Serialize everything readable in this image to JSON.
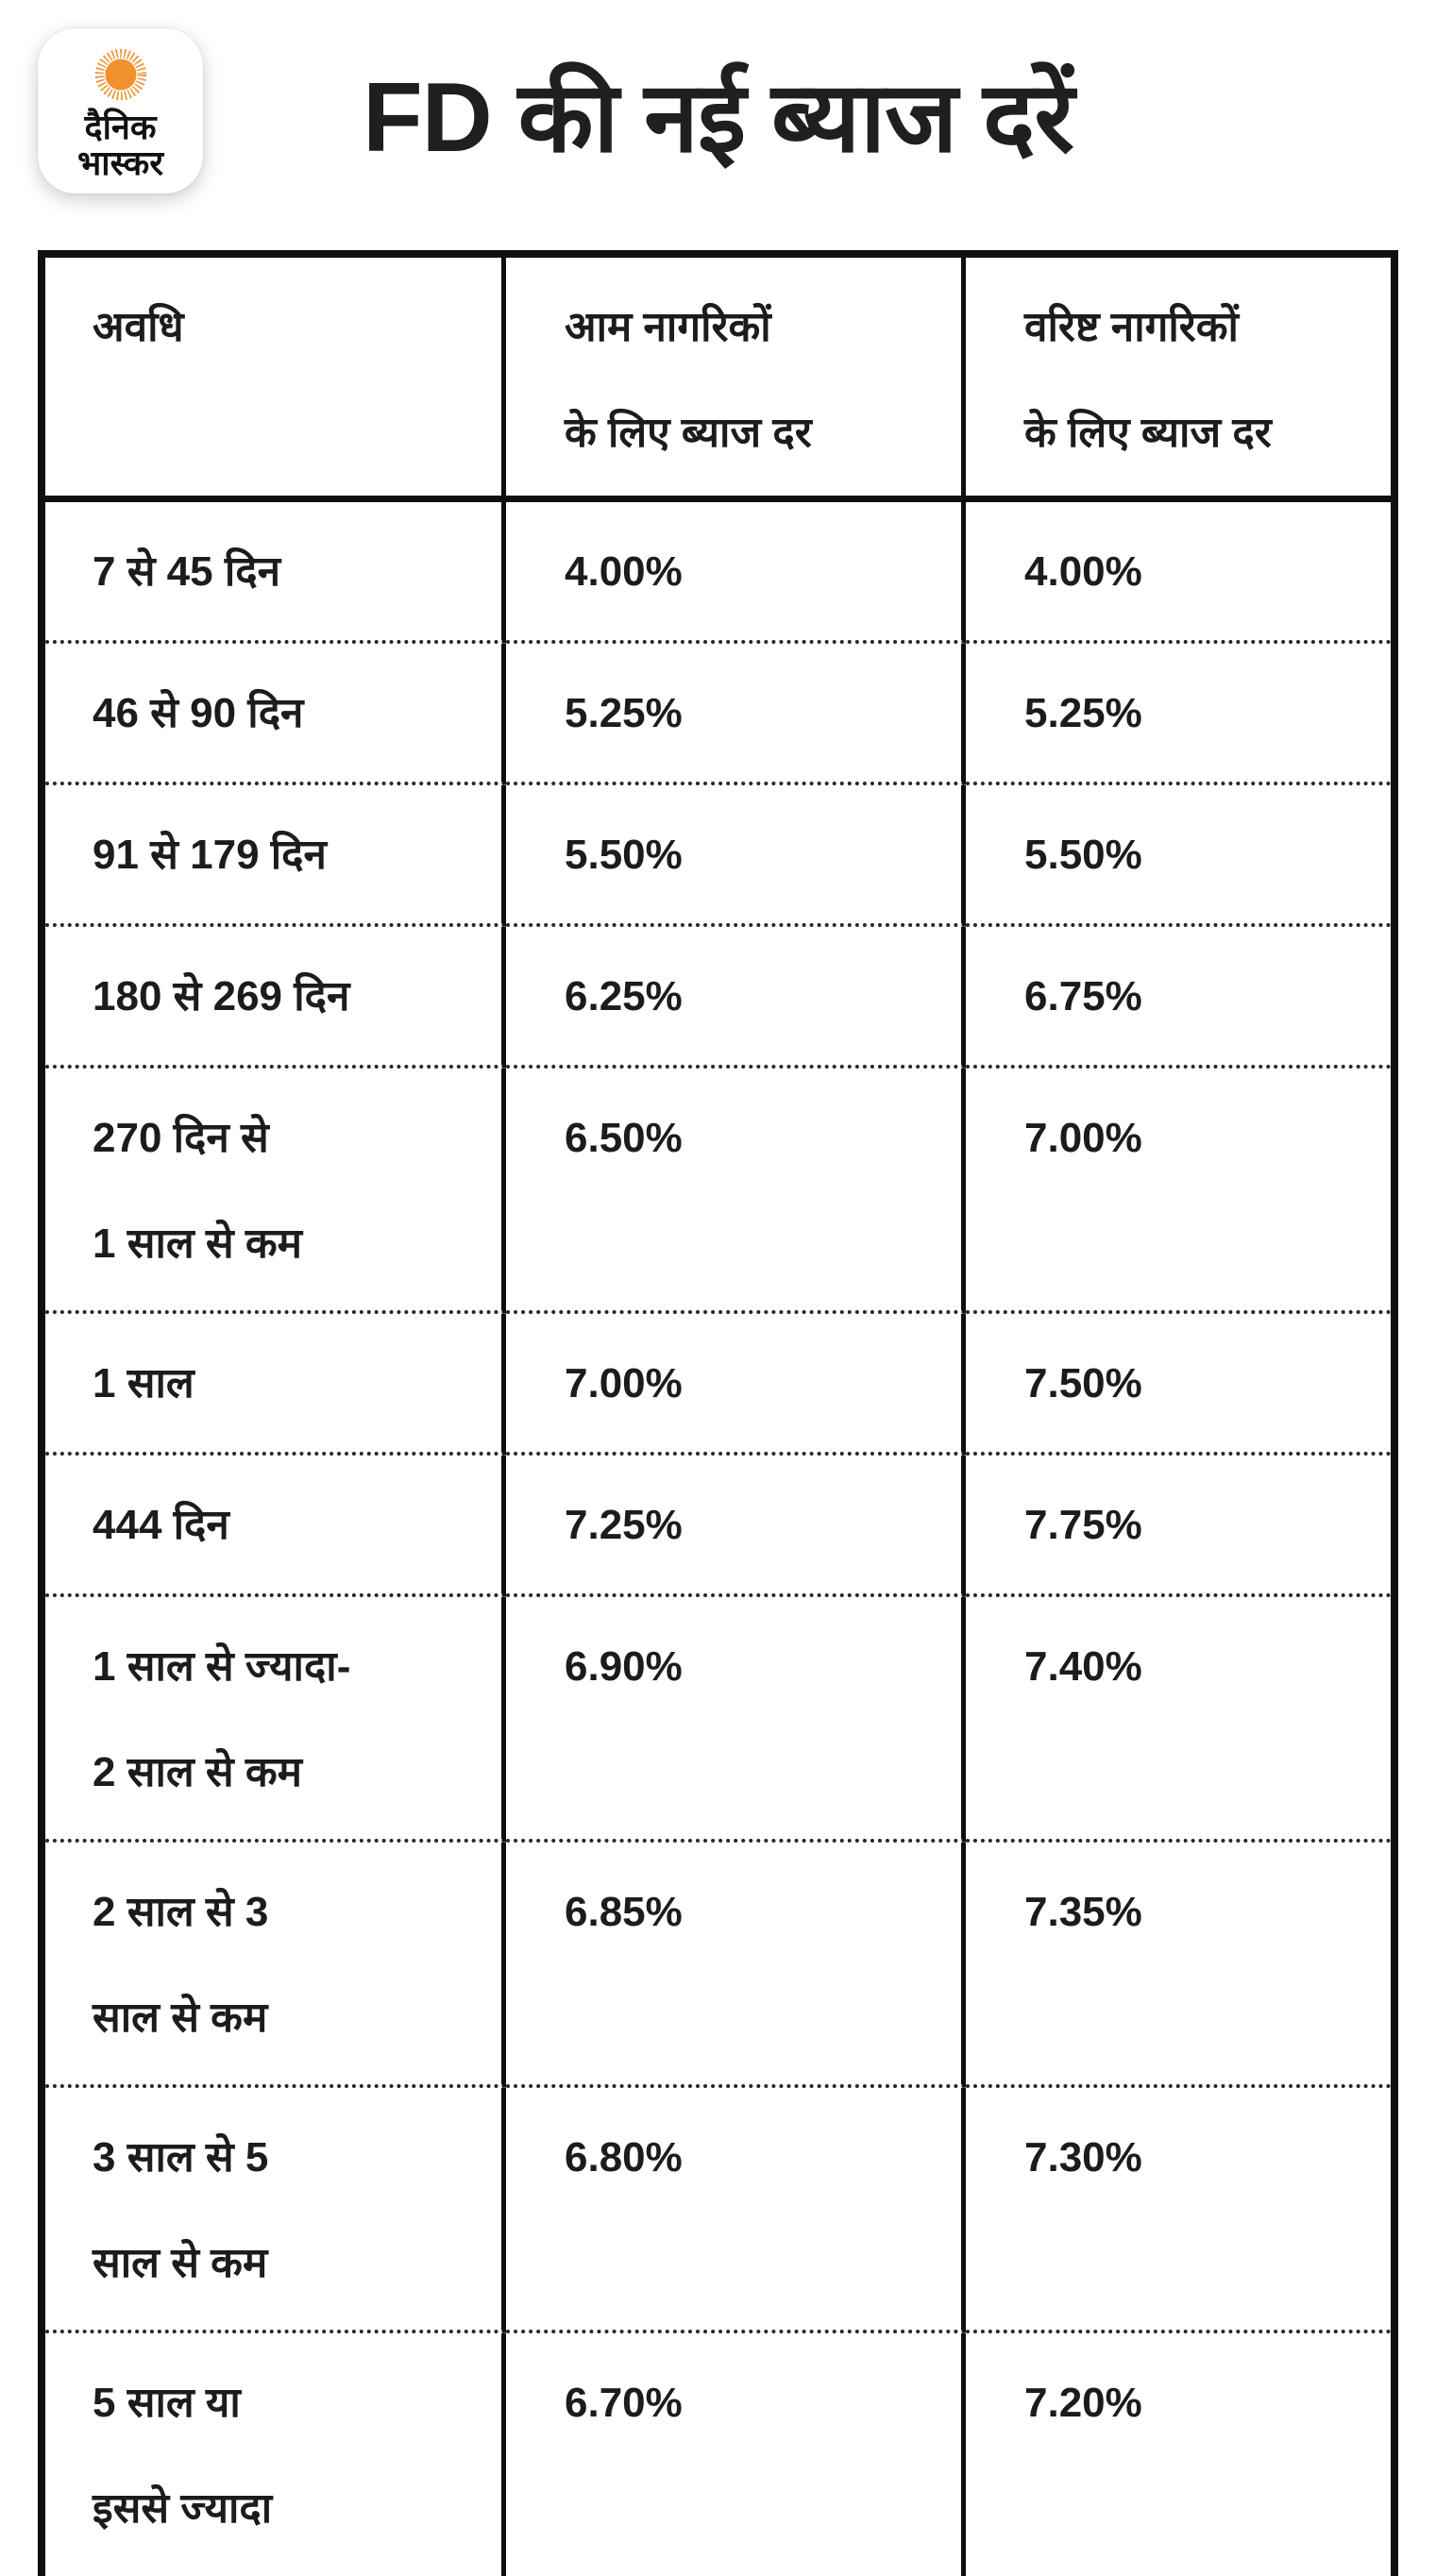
{
  "logo": {
    "name": "Dainik Bhaskar",
    "line1": "दैनिक",
    "line2": "भास्कर"
  },
  "title": "FD की नई ब्याज दरें",
  "colors": {
    "logo_orange": "#F0912D",
    "text": "#1c1c1c",
    "border": "#0f0f0f",
    "background": "#ffffff"
  },
  "chart_data": {
    "type": "table",
    "title": "FD की नई ब्याज दरें",
    "columns": [
      "अवधि",
      "आम नागरिकों\nके लिए ब्याज दर",
      "वरिष्ट नागरिकों\nके लिए ब्याज दर"
    ],
    "rows": [
      [
        "7 से 45 दिन",
        "4.00%",
        "4.00%"
      ],
      [
        "46 से 90 दिन",
        "5.25%",
        "5.25%"
      ],
      [
        "91 से 179 दिन",
        "5.50%",
        "5.50%"
      ],
      [
        "180 से 269 दिन",
        "6.25%",
        "6.75%"
      ],
      [
        "270 दिन से\n1 साल से कम",
        "6.50%",
        "7.00%"
      ],
      [
        "1 साल",
        "7.00%",
        "7.50%"
      ],
      [
        "444 दिन",
        "7.25%",
        "7.75%"
      ],
      [
        "1 साल से ज्यादा-\n2 साल से कम",
        "6.90%",
        "7.40%"
      ],
      [
        "2 साल से 3\nसाल से कम",
        "6.85%",
        "7.35%"
      ],
      [
        "3 साल से 5\nसाल से कम",
        "6.80%",
        "7.30%"
      ],
      [
        "5 साल या\nइससे ज्यादा",
        "6.70%",
        "7.20%"
      ]
    ]
  }
}
